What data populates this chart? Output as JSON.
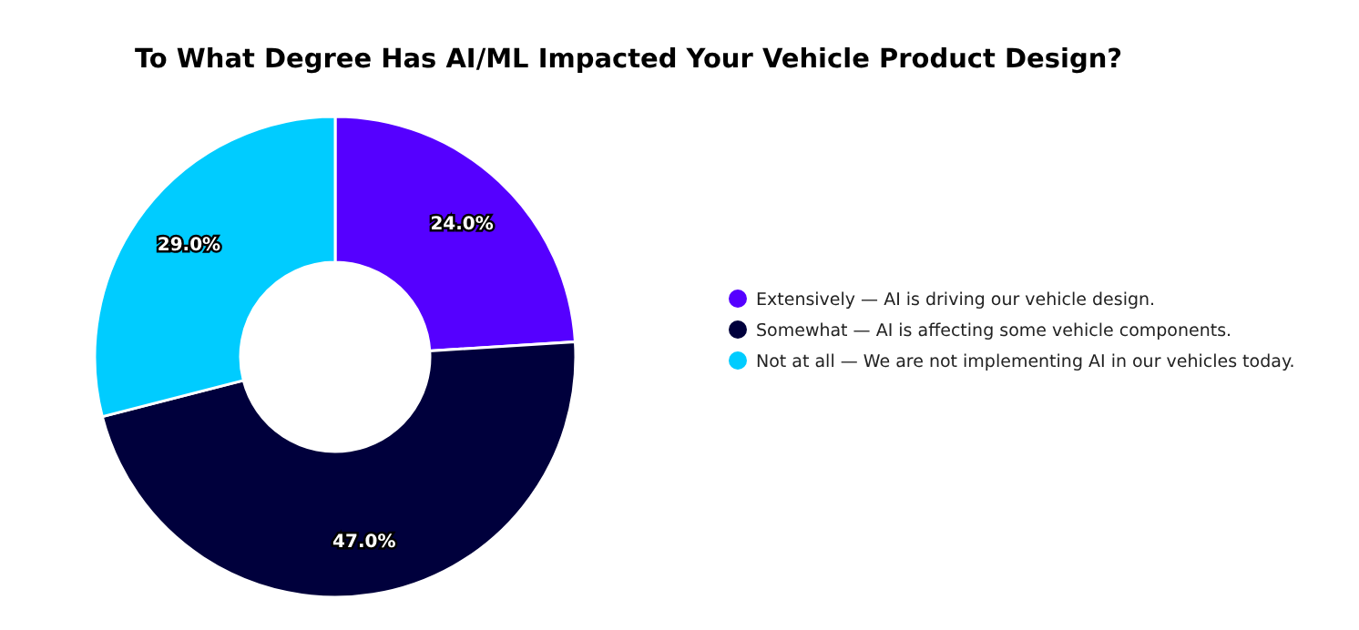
{
  "chart_data": {
    "type": "donut",
    "title": "To What Degree Has AI/ML Impacted Your Vehicle Product Design?",
    "categories": [
      "Extensively — AI is driving our vehicle design.",
      "Somewhat — AI is affecting some vehicle components.",
      "Not at all — We are not implementing AI in our vehicles today."
    ],
    "values": [
      24.0,
      47.0,
      29.0
    ],
    "colors": [
      "#5500ff",
      "#00003c",
      "#00ccff"
    ],
    "value_labels": [
      "24.0%",
      "47.0%",
      "29.0%"
    ],
    "legend": "right"
  }
}
